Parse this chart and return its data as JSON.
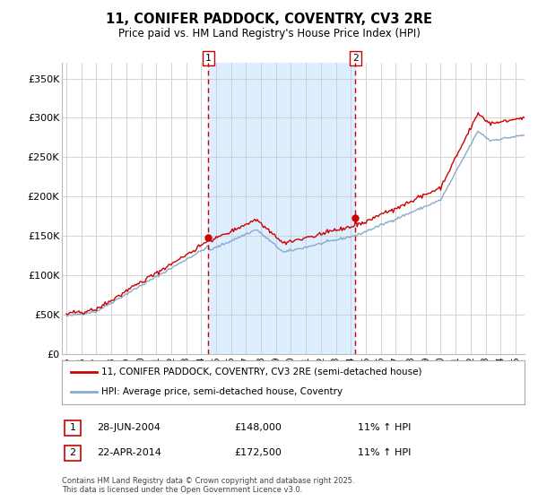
{
  "title": "11, CONIFER PADDOCK, COVENTRY, CV3 2RE",
  "subtitle": "Price paid vs. HM Land Registry's House Price Index (HPI)",
  "legend_line1": "11, CONIFER PADDOCK, COVENTRY, CV3 2RE (semi-detached house)",
  "legend_line2": "HPI: Average price, semi-detached house, Coventry",
  "footnote": "Contains HM Land Registry data © Crown copyright and database right 2025.\nThis data is licensed under the Open Government Licence v3.0.",
  "sale1_date": "28-JUN-2004",
  "sale1_price": "£148,000",
  "sale1_hpi": "11% ↑ HPI",
  "sale2_date": "22-APR-2014",
  "sale2_price": "£172,500",
  "sale2_hpi": "11% ↑ HPI",
  "vline1_x": 2004.49,
  "vline2_x": 2014.31,
  "marker1_y": 148000,
  "marker2_y": 172500,
  "shade_color": "#ddeeff",
  "red_line_color": "#cc0000",
  "blue_line_color": "#88aacc",
  "background_color": "#ffffff",
  "grid_color": "#cccccc",
  "yticks": [
    0,
    50000,
    100000,
    150000,
    200000,
    250000,
    300000,
    350000
  ],
  "ytick_labels": [
    "£0",
    "£50K",
    "£100K",
    "£150K",
    "£200K",
    "£250K",
    "£300K",
    "£350K"
  ],
  "ylim": [
    0,
    370000
  ],
  "xlim_start": 1994.7,
  "xlim_end": 2025.6
}
